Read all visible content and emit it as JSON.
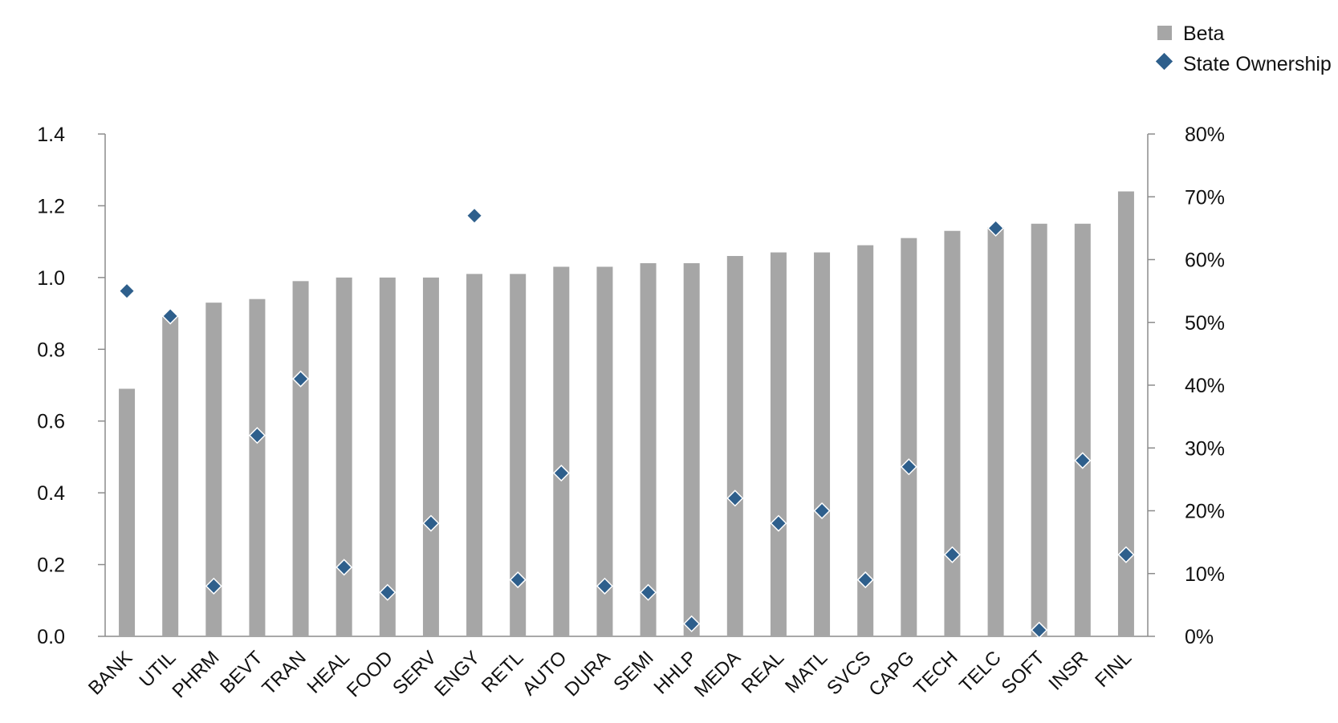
{
  "chart_data": {
    "type": "bar",
    "categories": [
      "BANK",
      "UTIL",
      "PHRM",
      "BEVT",
      "TRAN",
      "HEAL",
      "FOOD",
      "SERV",
      "ENGY",
      "RETL",
      "AUTO",
      "DURA",
      "SEMI",
      "HHLP",
      "MEDA",
      "REAL",
      "MATL",
      "SVCS",
      "CAPG",
      "TECH",
      "TELC",
      "SOFT",
      "INSR",
      "FINL"
    ],
    "series": [
      {
        "name": "Beta",
        "type": "bar",
        "axis": "left",
        "color": "#a6a6a6",
        "values": [
          0.69,
          0.89,
          0.93,
          0.94,
          0.99,
          1.0,
          1.0,
          1.0,
          1.01,
          1.01,
          1.03,
          1.03,
          1.04,
          1.04,
          1.06,
          1.07,
          1.07,
          1.09,
          1.11,
          1.13,
          1.14,
          1.15,
          1.15,
          1.24
        ]
      },
      {
        "name": "State Ownership",
        "type": "scatter",
        "marker": "diamond",
        "axis": "right",
        "color": "#2e5f8c",
        "values": [
          55,
          51,
          8,
          32,
          41,
          11,
          7,
          18,
          67,
          9,
          26,
          8,
          7,
          2,
          22,
          18,
          20,
          9,
          27,
          13,
          65,
          1,
          28,
          13
        ]
      }
    ],
    "y_left": {
      "min": 0,
      "max": 1.4,
      "ticks": [
        "0.0",
        "0.2",
        "0.4",
        "0.6",
        "0.8",
        "1.0",
        "1.2",
        "1.4"
      ]
    },
    "y_right": {
      "min": 0,
      "max": 80,
      "ticks": [
        "0%",
        "10%",
        "20%",
        "30%",
        "40%",
        "50%",
        "60%",
        "70%",
        "80%"
      ]
    },
    "grid": false,
    "legend_position": "top-right"
  },
  "legend": [
    {
      "label": "Beta",
      "marker": "square",
      "color": "#a6a6a6"
    },
    {
      "label": "State Ownership",
      "marker": "diamond",
      "color": "#2e5f8c"
    }
  ]
}
